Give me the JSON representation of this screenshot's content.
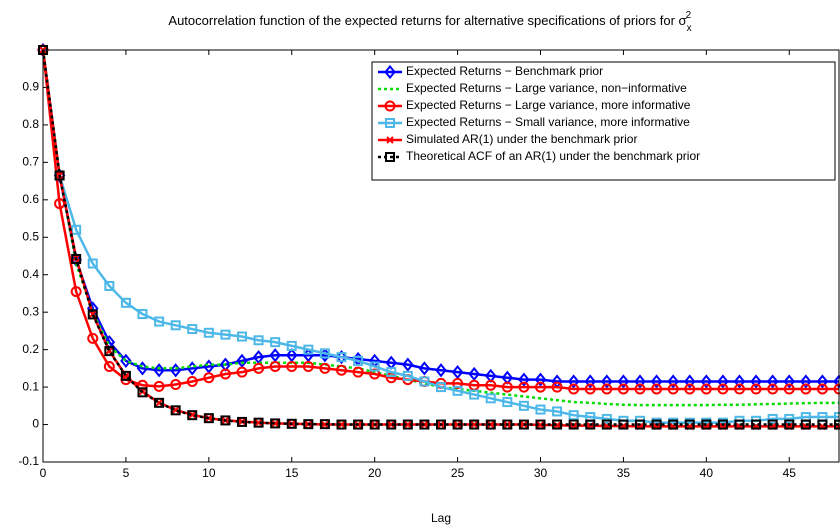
{
  "chart_data": {
    "type": "line",
    "title": "Autocorrelation function of the expected returns for alternative specifications of priors for σ",
    "title_subscript": "x",
    "title_superscript": "2",
    "x_label": "Lag",
    "xlim": [
      0,
      48
    ],
    "ylim": [
      -0.1,
      1
    ],
    "xticks": [
      0,
      5,
      10,
      15,
      20,
      25,
      30,
      35,
      40,
      45
    ],
    "yticks": [
      -0.1,
      0,
      0.1,
      0.2,
      0.3,
      0.4,
      0.5,
      0.6,
      0.7,
      0.8,
      0.9
    ],
    "grid": false,
    "legend_position": "northeast",
    "x": [
      0,
      1,
      2,
      3,
      4,
      5,
      6,
      7,
      8,
      9,
      10,
      11,
      12,
      13,
      14,
      15,
      16,
      17,
      18,
      19,
      20,
      21,
      22,
      23,
      24,
      25,
      26,
      27,
      28,
      29,
      30,
      31,
      32,
      33,
      34,
      35,
      36,
      37,
      38,
      39,
      40,
      41,
      42,
      43,
      44,
      45,
      46,
      47,
      48
    ],
    "series": [
      {
        "name": "Expected Returns − Benchmark prior",
        "color": "#0000ff",
        "marker": "diamond",
        "line_style": "solid",
        "values": [
          1,
          0.665,
          0.44,
          0.31,
          0.22,
          0.17,
          0.15,
          0.145,
          0.145,
          0.15,
          0.155,
          0.16,
          0.17,
          0.18,
          0.185,
          0.185,
          0.185,
          0.185,
          0.18,
          0.175,
          0.17,
          0.165,
          0.16,
          0.15,
          0.145,
          0.14,
          0.135,
          0.13,
          0.125,
          0.12,
          0.12,
          0.115,
          0.115,
          0.115,
          0.115,
          0.115,
          0.115,
          0.115,
          0.115,
          0.115,
          0.115,
          0.115,
          0.115,
          0.115,
          0.115,
          0.115,
          0.115,
          0.115,
          0.115
        ]
      },
      {
        "name": "Expected Returns − Large variance, non−informative",
        "color": "#00dd00",
        "marker": "none",
        "line_style": "dotted",
        "values": [
          1,
          0.67,
          0.43,
          0.3,
          0.21,
          0.17,
          0.155,
          0.15,
          0.15,
          0.155,
          0.16,
          0.16,
          0.165,
          0.165,
          0.165,
          0.165,
          0.165,
          0.16,
          0.155,
          0.15,
          0.14,
          0.13,
          0.12,
          0.11,
          0.1,
          0.095,
          0.09,
          0.085,
          0.08,
          0.075,
          0.07,
          0.065,
          0.06,
          0.058,
          0.055,
          0.053,
          0.052,
          0.052,
          0.052,
          0.052,
          0.052,
          0.053,
          0.053,
          0.054,
          0.055,
          0.056,
          0.057,
          0.058,
          0.058
        ]
      },
      {
        "name": "Expected Returns − Large variance, more informative",
        "color": "#ff0000",
        "marker": "circle",
        "line_style": "solid",
        "values": [
          1,
          0.59,
          0.355,
          0.23,
          0.155,
          0.12,
          0.105,
          0.102,
          0.107,
          0.115,
          0.125,
          0.135,
          0.14,
          0.15,
          0.155,
          0.155,
          0.155,
          0.15,
          0.145,
          0.14,
          0.135,
          0.125,
          0.12,
          0.115,
          0.11,
          0.11,
          0.105,
          0.105,
          0.1,
          0.1,
          0.1,
          0.1,
          0.095,
          0.095,
          0.095,
          0.095,
          0.095,
          0.095,
          0.095,
          0.095,
          0.095,
          0.095,
          0.095,
          0.095,
          0.095,
          0.095,
          0.095,
          0.095,
          0.095
        ]
      },
      {
        "name": "Expected Returns − Small variance, more informative",
        "color": "#4db8e8",
        "marker": "square",
        "line_style": "solid",
        "values": [
          1,
          0.665,
          0.52,
          0.43,
          0.37,
          0.325,
          0.295,
          0.275,
          0.265,
          0.255,
          0.245,
          0.24,
          0.235,
          0.225,
          0.22,
          0.21,
          0.2,
          0.19,
          0.18,
          0.17,
          0.155,
          0.14,
          0.13,
          0.115,
          0.1,
          0.09,
          0.08,
          0.07,
          0.06,
          0.05,
          0.04,
          0.035,
          0.025,
          0.02,
          0.015,
          0.01,
          0.01,
          0.005,
          0.005,
          0.005,
          0.005,
          0.005,
          0.01,
          0.01,
          0.015,
          0.015,
          0.02,
          0.02,
          0.02
        ]
      },
      {
        "name": "Simulated AR(1) under the benchmark prior",
        "color": "#ff0000",
        "marker": "x",
        "line_style": "solid",
        "values": [
          1,
          0.665,
          0.445,
          0.295,
          0.197,
          0.13,
          0.088,
          0.058,
          0.039,
          0.026,
          0.017,
          0.011,
          0.008,
          0.005,
          0.003,
          0.002,
          0.001,
          0,
          0,
          0,
          0,
          0,
          0,
          0,
          0,
          0,
          0,
          0,
          0,
          0,
          -0.001,
          -0.002,
          -0.003,
          -0.003,
          -0.004,
          -0.004,
          -0.005,
          -0.005,
          -0.005,
          -0.005,
          -0.005,
          -0.005,
          -0.005,
          -0.005,
          -0.005,
          -0.005,
          -0.005,
          -0.005,
          -0.005
        ]
      },
      {
        "name": "Theoretical ACF of an AR(1) under the benchmark prior",
        "color": "#000000",
        "marker": "square",
        "line_style": "dotted",
        "values": [
          1,
          0.665,
          0.442,
          0.294,
          0.196,
          0.13,
          0.086,
          0.058,
          0.038,
          0.025,
          0.017,
          0.011,
          0.007,
          0.005,
          0.003,
          0.002,
          0.001,
          0.001,
          0,
          0,
          0,
          0,
          0,
          0,
          0,
          0,
          0,
          0,
          0,
          0,
          0,
          0,
          0,
          0,
          0,
          0,
          0,
          0,
          0,
          0,
          0,
          0,
          0,
          0,
          0,
          0,
          0,
          0,
          0
        ]
      }
    ]
  }
}
